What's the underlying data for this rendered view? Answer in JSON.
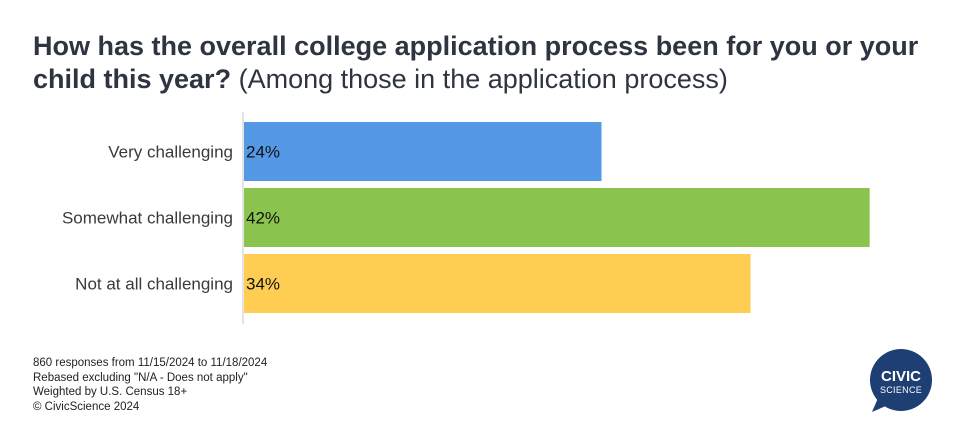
{
  "title": {
    "main": "How has the overall college application process been for you or your child this year?",
    "sub": "(Among those in the application process)"
  },
  "chart_data": {
    "type": "bar",
    "orientation": "horizontal",
    "categories": [
      "Very challenging",
      "Somewhat challenging",
      "Not at all challenging"
    ],
    "values": [
      24,
      42,
      34
    ],
    "value_labels": [
      "24%",
      "42%",
      "34%"
    ],
    "colors": [
      "#5599e6",
      "#8bc34f",
      "#fecd52"
    ],
    "unit": "%",
    "xlim": [
      0,
      43.5
    ],
    "grid": false,
    "legend": "none"
  },
  "footnotes": [
    "860 responses from 11/15/2024 to 11/18/2024",
    "Rebased excluding \"N/A - Does not apply\"",
    "Weighted by U.S. Census 18+",
    "© CivicScience 2024"
  ],
  "logo": {
    "line1": "CIVIC",
    "line2": "SCIENCE",
    "color": "#1e3f73"
  }
}
